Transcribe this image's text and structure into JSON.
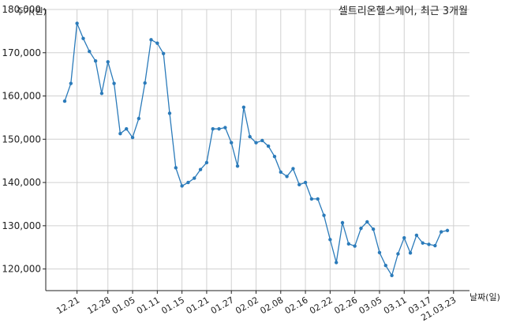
{
  "chart_data": {
    "type": "line",
    "title": "셀트리온헬스케어, 최근 3개월",
    "ylabel": "주가(원)",
    "xlabel": "날짜(일)",
    "ylim": [
      115000,
      180000
    ],
    "yticks": [
      120000,
      130000,
      140000,
      150000,
      160000,
      170000,
      180000
    ],
    "ytick_labels": [
      "120,000",
      "130,000",
      "140,000",
      "150,000",
      "160,000",
      "170,000",
      "180,000"
    ],
    "xtick_labels": [
      "12.21",
      "12.28",
      "01.05",
      "01.11",
      "01.15",
      "01.21",
      "01.27",
      "02.02",
      "02.08",
      "02.16",
      "02.22",
      "02.26",
      "03.05",
      "03.11",
      "03.17",
      "21.03.23"
    ],
    "xtick_positions": [
      2,
      7,
      11,
      15,
      19,
      23,
      27,
      31,
      35,
      39,
      43,
      47,
      51,
      55,
      59,
      63
    ],
    "grid": true,
    "line_color": "#2b7bba",
    "series": [
      {
        "values": [
          158800,
          162900,
          176800,
          173300,
          170300,
          168100,
          160600,
          167900,
          162900,
          151300,
          152400,
          150400,
          154800,
          163000,
          173000,
          172200,
          169800,
          156000,
          143400,
          139200,
          140000,
          141000,
          143000,
          144600,
          152400,
          152400,
          152700,
          149200,
          143800,
          157400,
          150600,
          149200,
          149700,
          148400,
          146000,
          142400,
          141400,
          143200,
          139500,
          140000,
          136200,
          136200,
          132400,
          126800,
          121500,
          130700,
          125800,
          125300,
          129400,
          130900,
          129200,
          123800,
          120800,
          118500,
          123500,
          127200,
          123700,
          127800,
          126000,
          125700,
          125400,
          128600,
          128900
        ]
      }
    ]
  }
}
